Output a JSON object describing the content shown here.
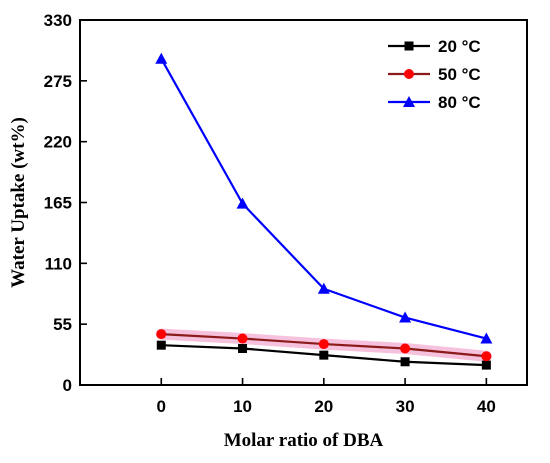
{
  "chart_data": {
    "type": "line",
    "title": "",
    "xlabel": "Molar ratio of DBA",
    "ylabel": "Water Uptake (wt%)",
    "x": [
      0,
      10,
      20,
      30,
      40
    ],
    "xlim": [
      -10,
      45
    ],
    "ylim": [
      0,
      330
    ],
    "xticks": [
      0,
      10,
      20,
      30,
      40
    ],
    "yticks": [
      0,
      55,
      110,
      165,
      220,
      275,
      330
    ],
    "grid": false,
    "legend_position": "top-right",
    "series": [
      {
        "name": "20 °C",
        "values": [
          36,
          33,
          27,
          21,
          18
        ],
        "color": "#000000",
        "marker": "square"
      },
      {
        "name": "50 °C",
        "values": [
          46,
          42,
          37,
          33,
          26
        ],
        "color": "#8b1a1a",
        "marker_color": "#ff0000",
        "marker": "circle",
        "highlight_color": "#f3b6d6"
      },
      {
        "name": "80 °C",
        "values": [
          295,
          164,
          87,
          61,
          42
        ],
        "color": "#0000ff",
        "marker": "triangle"
      }
    ]
  }
}
